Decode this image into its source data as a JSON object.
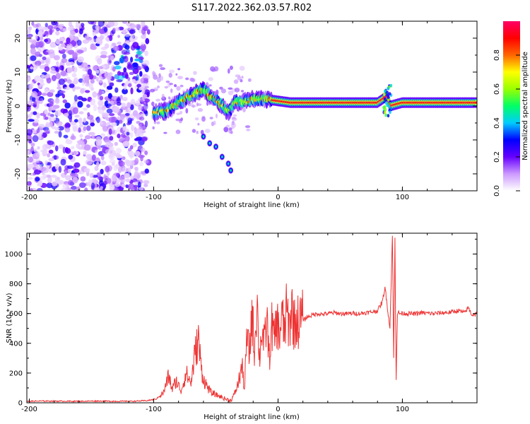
{
  "chart_data": [
    {
      "type": "heatmap",
      "title": "S117.2022.362.03.57.R02",
      "xlabel": "Height of straight line (km)",
      "ylabel": "Frequency (Hz)",
      "xlim": [
        -202,
        160
      ],
      "ylim": [
        -25,
        25
      ],
      "x_ticks": [
        -200,
        -100,
        0,
        100
      ],
      "y_ticks": [
        -20,
        -10,
        0,
        10,
        20
      ],
      "colorbar": {
        "label": "Normalized spectral amplitude",
        "range": [
          0,
          1
        ],
        "ticks": [
          "0.0",
          "0.2",
          "0.4",
          "0.6",
          "0.8"
        ],
        "colors": [
          "#ffffff",
          "#cc99ff",
          "#6600ff",
          "#0000ff",
          "#00ccff",
          "#00ff66",
          "#99ff00",
          "#ffff00",
          "#ff6600",
          "#ff0000",
          "#ff0066"
        ]
      },
      "features": [
        {
          "name": "diffuse-noise",
          "x_range": [
            -202,
            -110
          ],
          "y_range": [
            -25,
            25
          ],
          "amplitude": 0.15
        },
        {
          "name": "main-trace",
          "points": [
            [
              -100,
              -2
            ],
            [
              -90,
              -1.5
            ],
            [
              -80,
              1
            ],
            [
              -70,
              3
            ],
            [
              -60,
              5
            ],
            [
              -55,
              3
            ],
            [
              -50,
              2
            ],
            [
              -45,
              0
            ],
            [
              -40,
              -2
            ],
            [
              -35,
              1
            ],
            [
              -30,
              1
            ],
            [
              -20,
              2
            ],
            [
              -10,
              2
            ],
            [
              0,
              1.5
            ],
            [
              10,
              1
            ],
            [
              20,
              1
            ],
            [
              40,
              1
            ],
            [
              60,
              1
            ],
            [
              80,
              1
            ],
            [
              88,
              3
            ],
            [
              90,
              0
            ],
            [
              100,
              1
            ],
            [
              120,
              1
            ],
            [
              140,
              1
            ],
            [
              160,
              1
            ]
          ],
          "amplitude": 0.9
        },
        {
          "name": "descending-branch",
          "points": [
            [
              -60,
              -9
            ],
            [
              -55,
              -11
            ],
            [
              -50,
              -12
            ],
            [
              -45,
              -15
            ],
            [
              -40,
              -17
            ],
            [
              -38,
              -19
            ]
          ],
          "amplitude": 0.6
        }
      ]
    },
    {
      "type": "line",
      "xlabel": "Height of straight line (km)",
      "ylabel": "SNR (10 * v/v)",
      "xlim": [
        -202,
        160
      ],
      "ylim": [
        0,
        1140
      ],
      "x_ticks": [
        -200,
        -100,
        0,
        100
      ],
      "y_ticks": [
        0,
        200,
        400,
        600,
        800,
        1000
      ],
      "series_color": "#ee3333",
      "series": [
        {
          "x": [
            -202,
            -190,
            -175,
            -160,
            -145,
            -130,
            -115,
            -105,
            -98,
            -92,
            -88,
            -85,
            -82,
            -78,
            -74,
            -70,
            -67,
            -64,
            -62,
            -60,
            -57,
            -54,
            -50,
            -46,
            -42,
            -38,
            -35,
            -32,
            -29,
            -27,
            -25,
            -23,
            -21,
            -19,
            -17,
            -15,
            -13,
            -11,
            -9,
            -7,
            -5,
            -3,
            -1,
            1,
            3,
            5,
            7,
            9,
            11,
            13,
            15,
            17,
            19,
            21,
            24,
            28,
            32,
            36,
            40,
            45,
            50,
            55,
            60,
            65,
            70,
            75,
            80,
            84,
            86,
            88,
            90,
            92,
            93,
            94,
            95,
            96,
            97,
            98,
            100,
            105,
            110,
            115,
            120,
            125,
            130,
            135,
            140,
            145,
            150,
            153,
            156,
            160
          ],
          "y": [
            10,
            12,
            11,
            10,
            12,
            10,
            11,
            15,
            25,
            70,
            180,
            90,
            150,
            80,
            200,
            130,
            320,
            430,
            250,
            160,
            110,
            70,
            55,
            40,
            25,
            15,
            60,
            130,
            250,
            90,
            450,
            320,
            620,
            350,
            710,
            300,
            500,
            380,
            560,
            300,
            520,
            420,
            550,
            450,
            580,
            480,
            620,
            500,
            650,
            520,
            560,
            540,
            570,
            560,
            580,
            590,
            600,
            595,
            600,
            605,
            600,
            598,
            602,
            600,
            605,
            610,
            620,
            680,
            780,
            640,
            500,
            1140,
            300,
            1100,
            160,
            600,
            605,
            600,
            602,
            600,
            598,
            605,
            602,
            600,
            604,
            606,
            610,
            620,
            605,
            640,
            590,
            600
          ]
        }
      ]
    }
  ]
}
